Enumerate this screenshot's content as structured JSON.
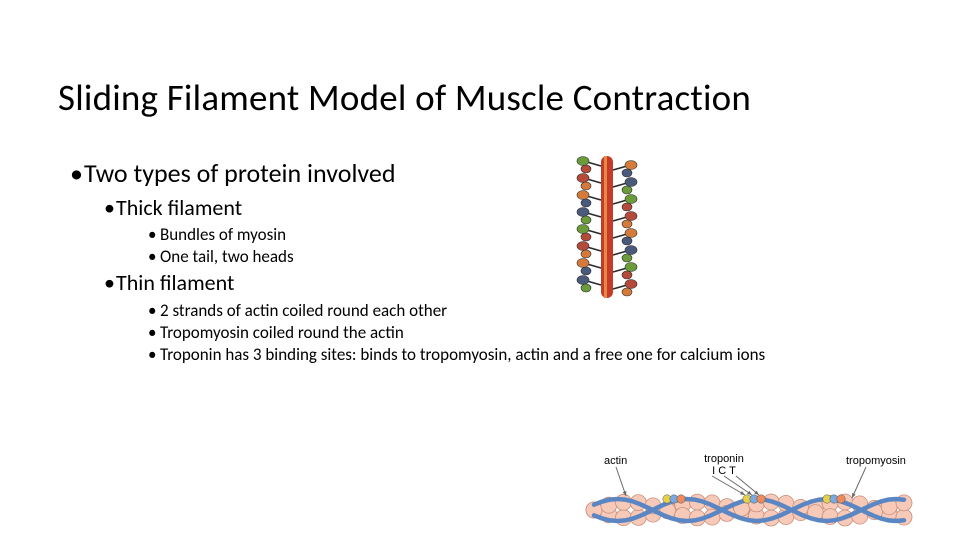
{
  "title": "Sliding Filament Model of Muscle Contraction",
  "bullets": {
    "l1": "Two types of protein involved",
    "thick": {
      "label": "Thick filament",
      "p1": "Bundles of myosin",
      "p2": "One tail, two heads"
    },
    "thin": {
      "label": "Thin filament",
      "p1": "2 strands of actin coiled round each other",
      "p2": "Tropomyosin coiled round the actin",
      "p3": "Troponin has 3 binding sites: binds to tropomyosin, actin and a free one for calcium ions"
    }
  },
  "fig_thick": {
    "stem_color": "#c63a2a",
    "stem_highlight": "#e58a40",
    "head_colors": [
      "#6b9b3a",
      "#b34a3a",
      "#d47a3a",
      "#4a5a7a"
    ],
    "head_outline": "#2a2a2a",
    "background": "#ffffff"
  },
  "fig_thin": {
    "labels": {
      "actin": "actin",
      "troponin": "troponin",
      "troponin_sub": "I C T",
      "tropomyosin": "tropomyosin"
    },
    "colors": {
      "actin_fill": "#f6c9b8",
      "actin_stroke": "#c98f7a",
      "tropomyosin": "#5a87c4",
      "troponin_I": "#e8d04a",
      "troponin_C": "#7aa8e0",
      "troponin_T": "#f08a5a",
      "arrow": "#6a6a6a",
      "text": "#000000"
    }
  }
}
